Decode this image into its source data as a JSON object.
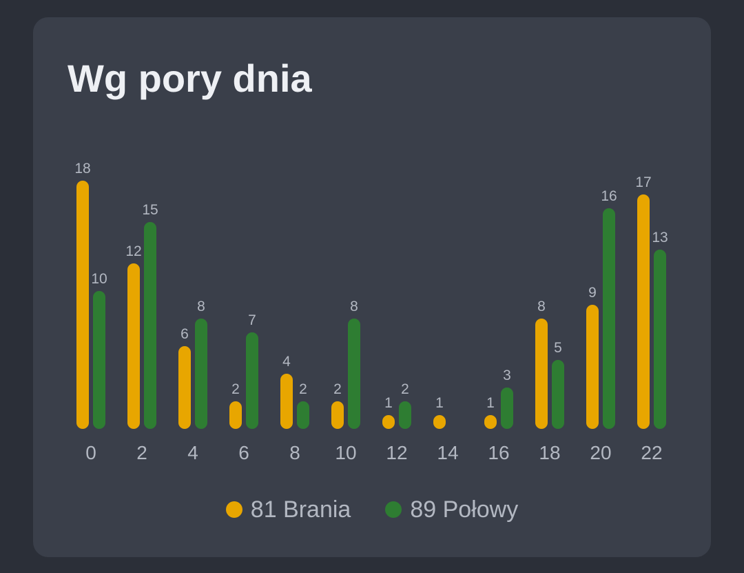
{
  "title": "Wg pory dnia",
  "colors": {
    "background": "#2b2f38",
    "card": "#3a3f4a",
    "series_a": "#e8a600",
    "series_b": "#2e7d32",
    "text": "#eef0f4",
    "muted_text": "#b3b8c2"
  },
  "legend": {
    "items": [
      {
        "label": "81 Brania",
        "color": "#e8a600"
      },
      {
        "label": "89 Połowy",
        "color": "#2e7d32"
      }
    ]
  },
  "chart_data": {
    "type": "bar",
    "title": "Wg pory dnia",
    "categories": [
      "0",
      "2",
      "4",
      "6",
      "8",
      "10",
      "12",
      "14",
      "16",
      "18",
      "20",
      "22"
    ],
    "series": [
      {
        "name": "81 Brania",
        "color": "#e8a600",
        "values": [
          18,
          12,
          6,
          2,
          4,
          2,
          1,
          1,
          1,
          8,
          9,
          17
        ]
      },
      {
        "name": "89 Połowy",
        "color": "#2e7d32",
        "values": [
          10,
          15,
          8,
          7,
          2,
          8,
          2,
          0,
          3,
          5,
          16,
          13
        ]
      }
    ],
    "data_labels": true,
    "grid": false,
    "legend_position": "bottom",
    "ylim": [
      0,
      18
    ]
  }
}
